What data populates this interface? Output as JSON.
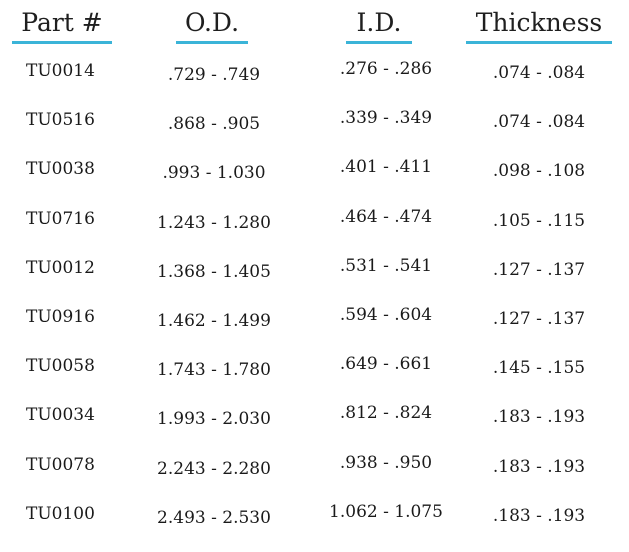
{
  "headers": {
    "part": "Part #",
    "od": "O.D.",
    "id": "I.D.",
    "thickness": "Thickness"
  },
  "accent_color": "#3bb4d8",
  "rows": [
    {
      "part": "TU0014",
      "od": ".729 - .749",
      "id": ".276 - .286",
      "thickness": ".074 - .084"
    },
    {
      "part": "TU0516",
      "od": ".868 - .905",
      "id": ".339 - .349",
      "thickness": ".074 - .084"
    },
    {
      "part": "TU0038",
      "od": ".993 - 1.030",
      "id": ".401 - .411",
      "thickness": ".098 - .108"
    },
    {
      "part": "TU0716",
      "od": "1.243 - 1.280",
      "id": ".464 - .474",
      "thickness": ".105 - .115"
    },
    {
      "part": "TU0012",
      "od": "1.368 - 1.405",
      "id": ".531 - .541",
      "thickness": ".127 - .137"
    },
    {
      "part": "TU0916",
      "od": "1.462 - 1.499",
      "id": ".594 - .604",
      "thickness": ".127 - .137"
    },
    {
      "part": "TU0058",
      "od": "1.743 - 1.780",
      "id": ".649 - .661",
      "thickness": ".145 - .155"
    },
    {
      "part": "TU0034",
      "od": "1.993 - 2.030",
      "id": ".812 - .824",
      "thickness": ".183 - .193"
    },
    {
      "part": "TU0078",
      "od": "2.243 - 2.280",
      "id": ".938 - .950",
      "thickness": ".183 - .193"
    },
    {
      "part": "TU0100",
      "od": "2.493 - 2.530",
      "id": "1.062 - 1.075",
      "thickness": ".183 - .193"
    }
  ]
}
